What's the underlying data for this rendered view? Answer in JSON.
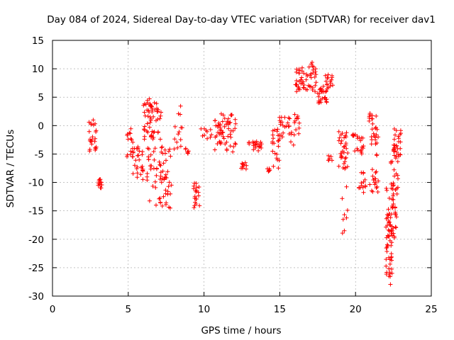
{
  "chart_data": {
    "type": "scatter",
    "title": "Day 084 of 2024, Sidereal Day-to-day VTEC variation (SDTVAR) for receiver dav1",
    "xlabel": "GPS time / hours",
    "ylabel": "SDTVAR / TECUs",
    "xlim": [
      0,
      25
    ],
    "ylim": [
      -30,
      15
    ],
    "xticks": [
      0,
      5,
      10,
      15,
      20,
      25
    ],
    "yticks": [
      -30,
      -25,
      -20,
      -15,
      -10,
      -5,
      0,
      5,
      10,
      15
    ],
    "xtick_labels": [
      "0",
      "5",
      "10",
      "15",
      "20",
      "25"
    ],
    "ytick_labels": [
      "-30",
      "-25",
      "-20",
      "-15",
      "-10",
      "-5",
      "0",
      "5",
      "10",
      "15"
    ],
    "grid": true,
    "marker": "+",
    "color": "#ff0000",
    "clusters": [
      {
        "x": [
          2.4,
          2.9
        ],
        "y": [
          -4.5,
          1.0
        ],
        "n": 24
      },
      {
        "x": [
          3.0,
          3.3
        ],
        "y": [
          -11.0,
          -9.3
        ],
        "n": 12
      },
      {
        "x": [
          4.8,
          5.3
        ],
        "y": [
          -5.5,
          -0.5
        ],
        "n": 16
      },
      {
        "x": [
          5.3,
          6.0
        ],
        "y": [
          -9.5,
          -3.5
        ],
        "n": 26
      },
      {
        "x": [
          6.0,
          7.2
        ],
        "y": [
          -2.5,
          5.0
        ],
        "n": 60
      },
      {
        "x": [
          6.2,
          6.9
        ],
        "y": [
          -14.5,
          -3.5
        ],
        "n": 24
      },
      {
        "x": [
          7.0,
          7.9
        ],
        "y": [
          -15.0,
          -3.0
        ],
        "n": 44
      },
      {
        "x": [
          8.0,
          8.6
        ],
        "y": [
          -5.0,
          4.5
        ],
        "n": 14
      },
      {
        "x": [
          8.7,
          9.0
        ],
        "y": [
          -5.0,
          -3.8
        ],
        "n": 6
      },
      {
        "x": [
          9.3,
          9.7
        ],
        "y": [
          -14.5,
          -10.0
        ],
        "n": 20
      },
      {
        "x": [
          9.8,
          10.5
        ],
        "y": [
          -3.0,
          -0.5
        ],
        "n": 10
      },
      {
        "x": [
          10.7,
          12.1
        ],
        "y": [
          -5.0,
          2.5
        ],
        "n": 60
      },
      {
        "x": [
          12.4,
          12.8
        ],
        "y": [
          -7.8,
          -6.5
        ],
        "n": 10
      },
      {
        "x": [
          12.9,
          13.8
        ],
        "y": [
          -4.5,
          -2.7
        ],
        "n": 22
      },
      {
        "x": [
          14.1,
          14.4
        ],
        "y": [
          -8.3,
          -7.5
        ],
        "n": 6
      },
      {
        "x": [
          14.5,
          15.0
        ],
        "y": [
          -7.5,
          -0.5
        ],
        "n": 22
      },
      {
        "x": [
          14.9,
          15.7
        ],
        "y": [
          -2.0,
          1.5
        ],
        "n": 20
      },
      {
        "x": [
          15.7,
          16.3
        ],
        "y": [
          -3.5,
          2.0
        ],
        "n": 16
      },
      {
        "x": [
          16.0,
          16.5
        ],
        "y": [
          6.0,
          10.5
        ],
        "n": 24
      },
      {
        "x": [
          16.5,
          17.4
        ],
        "y": [
          6.0,
          11.5
        ],
        "n": 32
      },
      {
        "x": [
          17.5,
          18.1
        ],
        "y": [
          4.0,
          7.0
        ],
        "n": 26
      },
      {
        "x": [
          18.0,
          18.5
        ],
        "y": [
          6.5,
          9.0
        ],
        "n": 16
      },
      {
        "x": [
          18.2,
          18.5
        ],
        "y": [
          -6.3,
          -5.2
        ],
        "n": 6
      },
      {
        "x": [
          18.9,
          19.5
        ],
        "y": [
          -8.0,
          -1.0
        ],
        "n": 34
      },
      {
        "x": [
          19.1,
          19.5
        ],
        "y": [
          -20.5,
          -10.0
        ],
        "n": 8
      },
      {
        "x": [
          19.8,
          20.6
        ],
        "y": [
          -5.0,
          -1.5
        ],
        "n": 22
      },
      {
        "x": [
          20.2,
          20.7
        ],
        "y": [
          -12.5,
          -8.0
        ],
        "n": 14
      },
      {
        "x": [
          20.9,
          21.5
        ],
        "y": [
          -12.0,
          3.0
        ],
        "n": 44
      },
      {
        "x": [
          22.0,
          22.5
        ],
        "y": [
          -28.0,
          -11.0
        ],
        "n": 60
      },
      {
        "x": [
          22.3,
          22.8
        ],
        "y": [
          -20.0,
          -5.0
        ],
        "n": 40
      },
      {
        "x": [
          22.5,
          23.0
        ],
        "y": [
          -5.5,
          -0.5
        ],
        "n": 28
      }
    ]
  }
}
